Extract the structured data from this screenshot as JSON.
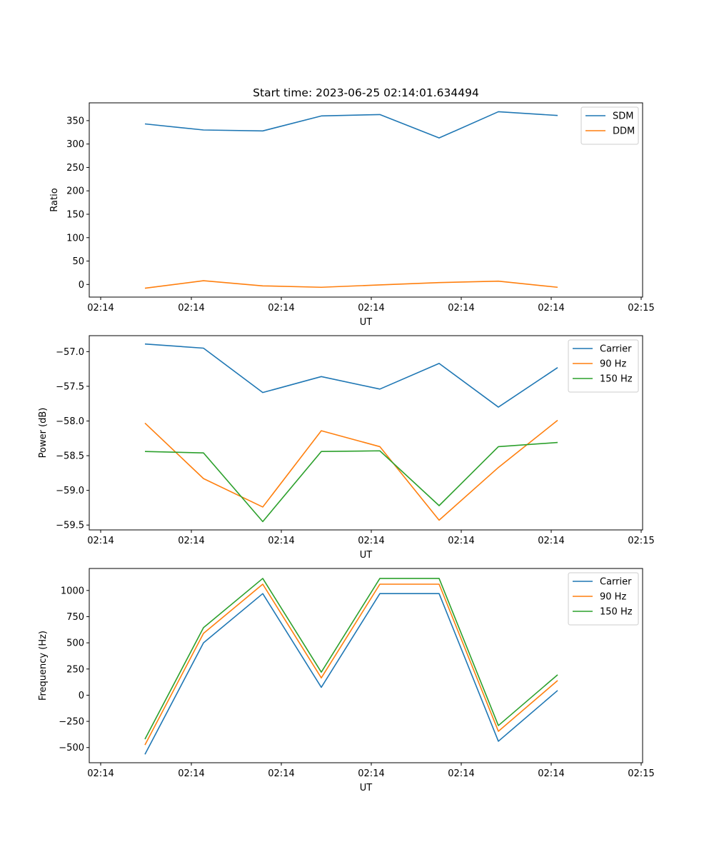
{
  "chart_data": [
    {
      "type": "line",
      "title": "Start time: 2023-06-25 02:14:01.634494",
      "xlabel": "UT",
      "ylabel": "Ratio",
      "x_tick_labels": [
        "02:14",
        "02:14",
        "02:14",
        "02:14",
        "02:14",
        "02:14",
        "02:14",
        "02:15"
      ],
      "y_ticks": [
        0,
        50,
        100,
        150,
        200,
        250,
        300,
        350
      ],
      "ylim": [
        -27,
        388
      ],
      "legend_position": "upper-right",
      "grid": false,
      "series": [
        {
          "name": "SDM",
          "color": "#1f77b4",
          "values": [
            343,
            330,
            328,
            360,
            363,
            313,
            369,
            361
          ]
        },
        {
          "name": "DDM",
          "color": "#ff7f0e",
          "values": [
            -8,
            8,
            -3,
            -6,
            -1,
            4,
            7,
            -6
          ]
        }
      ]
    },
    {
      "type": "line",
      "title": "",
      "xlabel": "UT",
      "ylabel": "Power (dB)",
      "x_tick_labels": [
        "02:14",
        "02:14",
        "02:14",
        "02:14",
        "02:14",
        "02:14",
        "02:14",
        "02:15"
      ],
      "y_ticks": [
        -59.5,
        -59.0,
        -58.5,
        -58.0,
        -57.5,
        -57.0
      ],
      "y_tick_labels": [
        "−59.5",
        "−59.0",
        "−58.5",
        "−58.0",
        "−57.5",
        "−57.0"
      ],
      "ylim": [
        -59.57,
        -56.77
      ],
      "legend_position": "upper-right",
      "grid": false,
      "series": [
        {
          "name": "Carrier",
          "color": "#1f77b4",
          "values": [
            -56.89,
            -56.95,
            -57.59,
            -57.36,
            -57.54,
            -57.17,
            -57.8,
            -57.23
          ]
        },
        {
          "name": "90 Hz",
          "color": "#ff7f0e",
          "values": [
            -58.03,
            -58.83,
            -59.24,
            -58.14,
            -58.37,
            -59.43,
            -58.67,
            -57.99
          ]
        },
        {
          "name": "150 Hz",
          "color": "#2ca02c",
          "values": [
            -58.44,
            -58.46,
            -59.45,
            -58.44,
            -58.43,
            -59.22,
            -58.37,
            -58.31
          ]
        }
      ]
    },
    {
      "type": "line",
      "title": "",
      "xlabel": "UT",
      "ylabel": "Frequency (Hz)",
      "x_tick_labels": [
        "02:14",
        "02:14",
        "02:14",
        "02:14",
        "02:14",
        "02:14",
        "02:14",
        "02:15"
      ],
      "y_ticks": [
        -500,
        -250,
        0,
        250,
        500,
        750,
        1000
      ],
      "y_tick_labels": [
        "−500",
        "−250",
        "0",
        "250",
        "500",
        "750",
        "1000"
      ],
      "ylim": [
        -645,
        1210
      ],
      "legend_position": "upper-right",
      "grid": false,
      "series": [
        {
          "name": "Carrier",
          "color": "#1f77b4",
          "values": [
            -565,
            500,
            970,
            75,
            970,
            970,
            -440,
            45
          ]
        },
        {
          "name": "90 Hz",
          "color": "#ff7f0e",
          "values": [
            -475,
            590,
            1060,
            165,
            1060,
            1060,
            -345,
            140
          ]
        },
        {
          "name": "150 Hz",
          "color": "#2ca02c",
          "values": [
            -420,
            645,
            1115,
            220,
            1115,
            1115,
            -290,
            195
          ]
        }
      ]
    }
  ]
}
